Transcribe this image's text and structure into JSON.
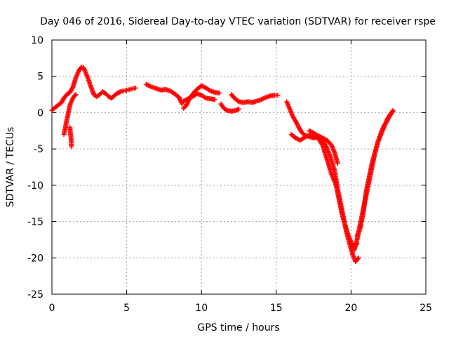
{
  "chart_data": {
    "type": "scatter",
    "title": "Day 046 of 2016, Sidereal Day-to-day VTEC variation (SDTVAR) for receiver rspe",
    "xlabel": "GPS time / hours",
    "ylabel": "SDTVAR / TECUs",
    "xlim": [
      0,
      25
    ],
    "ylim": [
      -25,
      10
    ],
    "x_ticks": [
      0,
      5,
      10,
      15,
      20,
      25
    ],
    "y_ticks": [
      -25,
      -20,
      -15,
      -10,
      -5,
      0,
      5,
      10
    ],
    "x_tick_labels": [
      "0",
      "5",
      "10",
      "15",
      "20",
      "25"
    ],
    "y_tick_labels": [
      "-25",
      "-20",
      "-15",
      "-10",
      "-5",
      "0",
      "5",
      "10"
    ],
    "grid": true,
    "marker": "+",
    "series": [
      {
        "name": "SDTVAR",
        "color": "#ff0000",
        "segments": [
          {
            "x": [
              0.0,
              0.2,
              0.4,
              0.6,
              0.8,
              1.0,
              1.2,
              1.4,
              1.6,
              1.8,
              2.0,
              2.1,
              2.2,
              2.4,
              2.6,
              2.8,
              3.0,
              3.2,
              3.4,
              3.6,
              3.8,
              4.0,
              4.2,
              4.4,
              4.6,
              4.8,
              5.0,
              5.2,
              5.4,
              5.6
            ],
            "y": [
              0.3,
              0.7,
              1.0,
              1.3,
              2.0,
              2.5,
              2.8,
              3.5,
              4.8,
              5.8,
              6.3,
              6.2,
              5.8,
              4.8,
              3.6,
              2.5,
              2.2,
              2.5,
              2.9,
              2.6,
              2.2,
              2.0,
              2.4,
              2.7,
              2.9,
              3.0,
              3.1,
              3.2,
              3.3,
              3.4
            ]
          },
          {
            "x": [
              0.8,
              0.9,
              1.0,
              1.1,
              1.2,
              1.3,
              1.4,
              1.5,
              1.6
            ],
            "y": [
              -3.0,
              -2.0,
              -1.0,
              0.0,
              1.0,
              1.5,
              2.0,
              2.3,
              2.5
            ]
          },
          {
            "x": [
              1.2,
              1.25,
              1.3,
              1.3
            ],
            "y": [
              -2.0,
              -3.0,
              -4.0,
              -4.7
            ]
          },
          {
            "x": [
              6.3,
              6.6,
              7.0,
              7.3,
              7.6,
              7.9,
              8.2,
              8.5,
              8.7
            ],
            "y": [
              3.9,
              3.6,
              3.3,
              3.1,
              3.2,
              3.0,
              2.6,
              2.1,
              1.2
            ]
          },
          {
            "x": [
              8.8,
              9.0,
              9.2,
              9.4,
              9.6,
              9.8,
              10.0,
              10.3,
              10.6,
              10.9,
              11.2
            ],
            "y": [
              0.6,
              1.0,
              2.0,
              2.5,
              3.0,
              3.4,
              3.7,
              3.4,
              3.0,
              2.8,
              2.7
            ]
          },
          {
            "x": [
              8.8,
              9.1,
              9.4,
              9.7,
              10.0,
              10.3,
              10.6,
              10.9
            ],
            "y": [
              1.6,
              1.9,
              2.2,
              2.6,
              2.4,
              2.0,
              1.9,
              1.8
            ]
          },
          {
            "x": [
              11.3,
              11.5,
              11.7,
              12.0,
              12.3,
              12.5
            ],
            "y": [
              1.2,
              0.6,
              0.3,
              0.2,
              0.3,
              0.5
            ]
          },
          {
            "x": [
              12.0,
              12.2,
              12.5,
              12.8,
              13.1,
              13.4,
              13.7,
              14.0,
              14.3,
              14.6,
              14.9,
              15.1
            ],
            "y": [
              2.5,
              2.0,
              1.5,
              1.4,
              1.5,
              1.4,
              1.6,
              1.8,
              2.1,
              2.3,
              2.4,
              2.4
            ]
          },
          {
            "x": [
              15.7,
              15.9,
              16.1,
              16.3,
              16.5,
              16.7,
              16.9,
              17.2,
              17.5,
              17.8,
              18.0,
              18.3,
              18.6,
              18.9,
              19.1,
              19.3,
              19.5,
              19.7,
              19.9,
              20.1,
              20.3,
              20.5
            ],
            "y": [
              1.5,
              0.5,
              -0.5,
              -1.2,
              -2.0,
              -2.7,
              -3.1,
              -3.3,
              -3.5,
              -3.2,
              -3.4,
              -4.5,
              -6.0,
              -8.0,
              -10.5,
              -12.5,
              -14.5,
              -16.5,
              -18.0,
              -19.5,
              -20.5,
              -20.0
            ]
          },
          {
            "x": [
              16.0,
              16.3,
              16.6,
              16.9,
              17.2,
              17.5,
              17.8,
              18.1,
              18.4,
              18.7,
              19.0,
              19.2,
              19.4,
              19.6,
              19.8,
              20.0,
              20.2,
              20.4
            ],
            "y": [
              -3.0,
              -3.5,
              -3.8,
              -3.4,
              -3.1,
              -3.3,
              -3.5,
              -4.5,
              -6.5,
              -8.5,
              -10.0,
              -12.0,
              -14.0,
              -15.5,
              -16.8,
              -17.8,
              -18.6,
              -18.0
            ]
          },
          {
            "x": [
              17.2,
              17.5,
              17.8,
              18.1,
              18.4,
              18.7,
              18.9,
              19.1
            ],
            "y": [
              -2.5,
              -2.8,
              -3.2,
              -3.5,
              -3.8,
              -4.5,
              -5.5,
              -7.0
            ]
          },
          {
            "x": [
              20.2,
              20.4,
              20.6,
              20.8,
              21.0,
              21.2,
              21.4,
              21.6,
              21.8,
              22.0,
              22.2,
              22.4,
              22.6,
              22.8
            ],
            "y": [
              -19.0,
              -17.5,
              -15.5,
              -13.5,
              -11.5,
              -9.5,
              -7.5,
              -5.5,
              -4.0,
              -3.0,
              -2.0,
              -1.0,
              -0.3,
              0.3
            ]
          },
          {
            "x": [
              20.4,
              20.6,
              20.8,
              21.0,
              21.2,
              21.4,
              21.6,
              21.8,
              22.0,
              22.2,
              22.4,
              22.6,
              22.8
            ],
            "y": [
              -17.0,
              -16.0,
              -14.0,
              -11.0,
              -9.0,
              -7.0,
              -5.5,
              -4.0,
              -2.8,
              -1.8,
              -1.2,
              -0.4,
              0.2
            ]
          }
        ]
      }
    ]
  }
}
